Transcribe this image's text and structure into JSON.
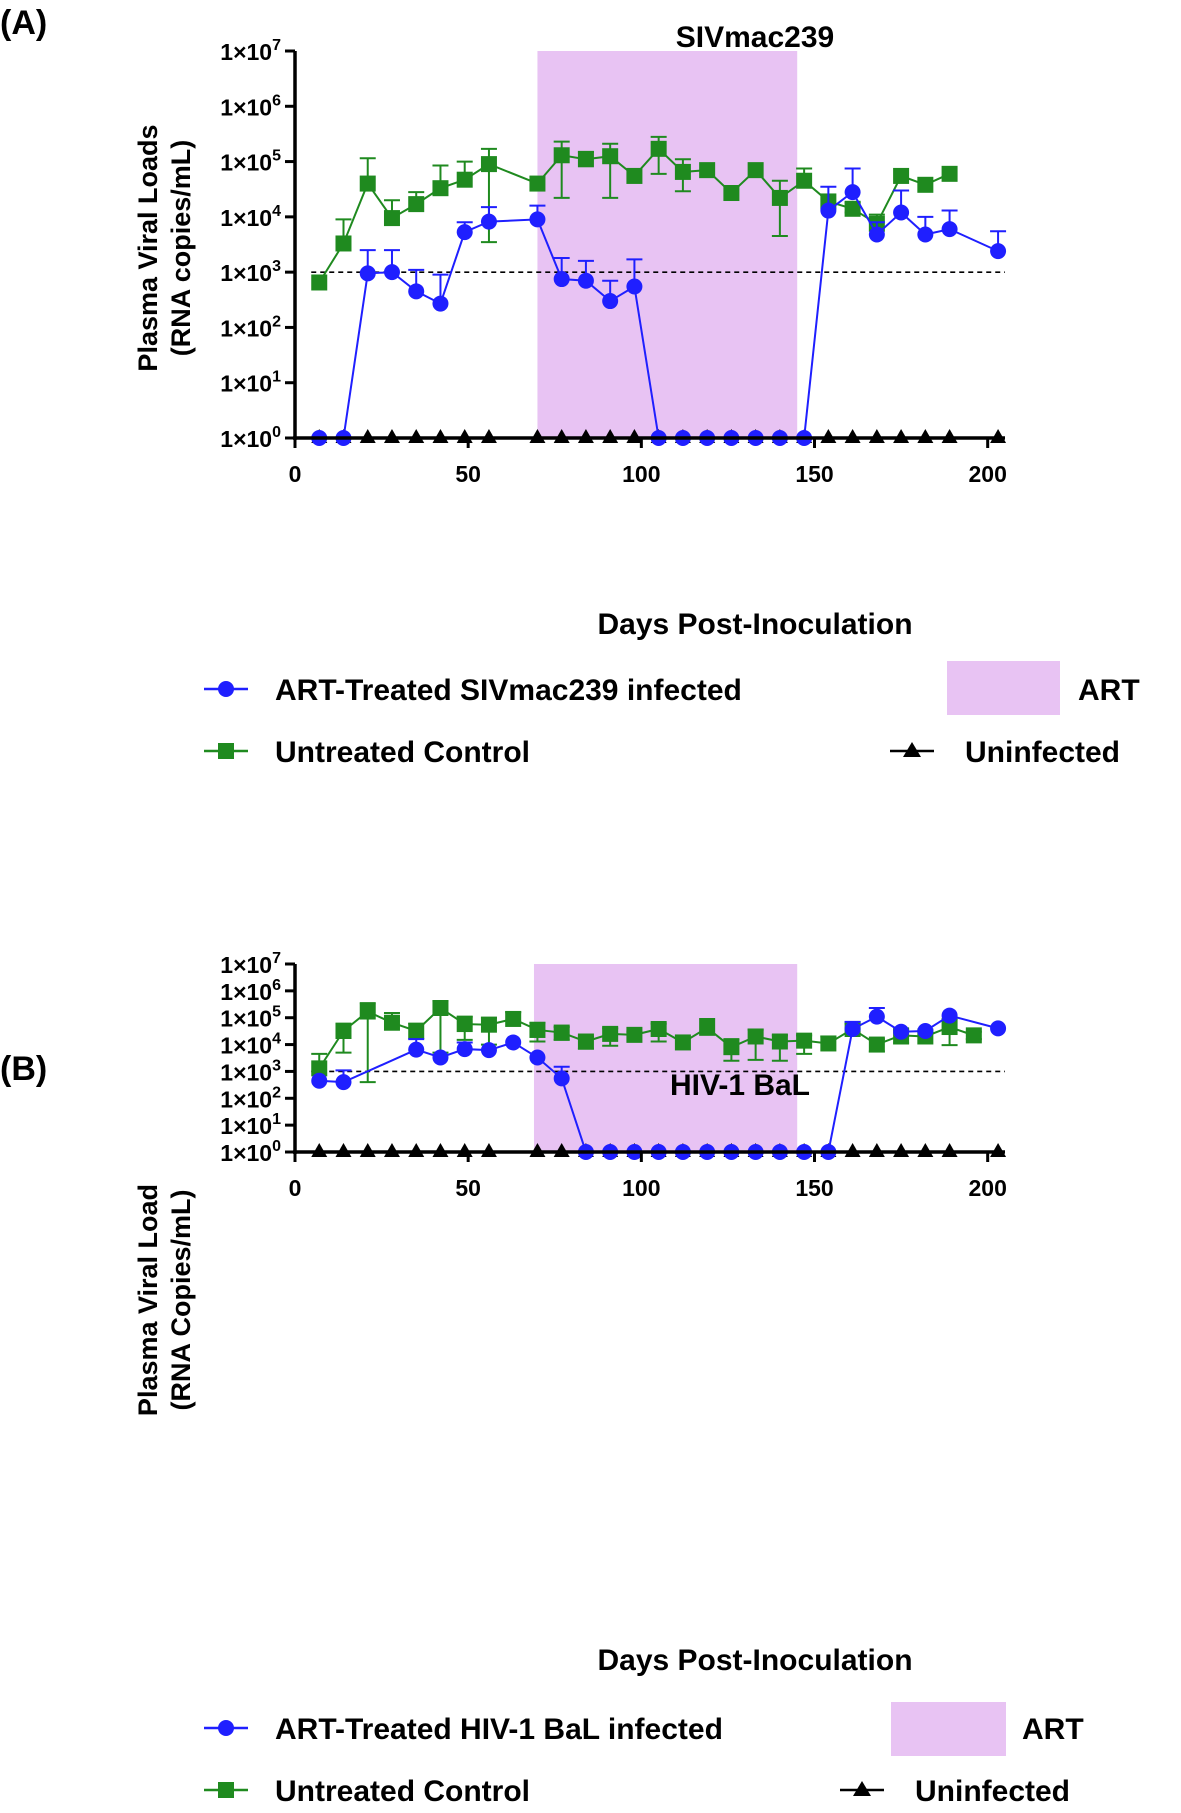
{
  "chart_data": [
    {
      "type": "line",
      "panel_label": "(A)",
      "title": "SIVmac239",
      "ylabel_line1": "Plasma Viral Loads",
      "ylabel_line2": "(RNA copies/mL)",
      "xlabel": "Days Post-Inoculation",
      "y_scale": "log10",
      "ylim": [
        1,
        10000000
      ],
      "xlim": [
        0,
        205
      ],
      "x_ticks": [
        0,
        50,
        100,
        150,
        200
      ],
      "x_tick_labels": [
        "0",
        "50",
        "100",
        "150",
        "200"
      ],
      "y_tick_exponents": [
        0,
        1,
        2,
        3,
        4,
        5,
        6,
        7
      ],
      "y_tick_labels": [
        {
          "base": "1×10",
          "exp": "0"
        },
        {
          "base": "1×10",
          "exp": "1"
        },
        {
          "base": "1×10",
          "exp": "2"
        },
        {
          "base": "1×10",
          "exp": "3"
        },
        {
          "base": "1×10",
          "exp": "4"
        },
        {
          "base": "1×10",
          "exp": "5"
        },
        {
          "base": "1×10",
          "exp": "6"
        },
        {
          "base": "1×10",
          "exp": "7"
        }
      ],
      "threshold": 1000,
      "shaded_region": {
        "label": "ART",
        "x_start": 70,
        "x_end": 145,
        "color": "#e8c3f3"
      },
      "series": [
        {
          "name": "ART-Treated SIVmac239 infected",
          "color": "#1f1fff",
          "marker": "circle",
          "x": [
            7,
            14,
            21,
            28,
            35,
            42,
            49,
            56,
            70,
            77,
            84,
            91,
            98,
            105,
            112,
            119,
            126,
            133,
            140,
            147,
            154,
            161,
            168,
            175,
            182,
            189,
            203
          ],
          "y": [
            1,
            1,
            950,
            1000,
            450,
            270,
            5300,
            8200,
            9000,
            750,
            700,
            300,
            550,
            1,
            1,
            1,
            1,
            1,
            1,
            1,
            13000,
            28000,
            4800,
            12000,
            4800,
            6000,
            2400
          ],
          "err_up": [
            1,
            1,
            2500,
            2500,
            1100,
            900,
            8000,
            15000,
            16000,
            1800,
            1600,
            700,
            1700,
            1,
            1,
            1,
            1,
            1,
            1,
            1,
            35000,
            75000,
            8000,
            30000,
            10000,
            13000,
            5500
          ]
        },
        {
          "name": "Untreated Control",
          "color": "#1f8a1f",
          "marker": "square",
          "x": [
            7,
            14,
            21,
            28,
            35,
            42,
            49,
            56,
            70,
            77,
            84,
            91,
            98,
            105,
            112,
            119,
            126,
            133,
            140,
            147,
            154,
            161,
            168,
            175,
            182,
            189
          ],
          "y": [
            650,
            3300,
            40000,
            9500,
            17000,
            33000,
            47000,
            90000,
            40000,
            130000,
            110000,
            125000,
            55000,
            170000,
            65000,
            70000,
            27000,
            70000,
            22000,
            45000,
            19000,
            14000,
            7500,
            55000,
            38000,
            60000
          ],
          "err_up": [
            650,
            9000,
            115000,
            20000,
            28000,
            85000,
            100000,
            170000,
            40000,
            230000,
            150000,
            210000,
            55000,
            280000,
            110000,
            70000,
            27000,
            70000,
            45000,
            75000,
            19000,
            18000,
            11000,
            55000,
            38000,
            60000
          ],
          "err_down": [
            650,
            3300,
            40000,
            9500,
            17000,
            33000,
            47000,
            3500,
            40000,
            22000,
            110000,
            22000,
            55000,
            60000,
            29000,
            70000,
            27000,
            70000,
            4500,
            45000,
            19000,
            12000,
            7500,
            55000,
            38000,
            60000
          ]
        },
        {
          "name": "Uninfected",
          "color": "#000000",
          "marker": "triangle",
          "x": [
            7,
            14,
            21,
            28,
            35,
            42,
            49,
            56,
            70,
            77,
            84,
            91,
            98,
            105,
            112,
            119,
            126,
            133,
            140,
            147,
            154,
            161,
            168,
            175,
            182,
            189,
            203
          ],
          "y": [
            1,
            1,
            1,
            1,
            1,
            1,
            1,
            1,
            1,
            1,
            1,
            1,
            1,
            1,
            1,
            1,
            1,
            1,
            1,
            1,
            1,
            1,
            1,
            1,
            1,
            1,
            1
          ]
        }
      ]
    },
    {
      "type": "line",
      "panel_label": "(B)",
      "title": "HIV-1 BaL",
      "ylabel_line1": "Plasma Viral Load",
      "ylabel_line2": "(RNA Copies/mL)",
      "xlabel": "Days Post-Inoculation",
      "y_scale": "log10",
      "ylim": [
        1,
        10000000
      ],
      "xlim": [
        0,
        205
      ],
      "x_ticks": [
        0,
        50,
        100,
        150,
        200
      ],
      "x_tick_labels": [
        "0",
        "50",
        "100",
        "150",
        "200"
      ],
      "y_tick_exponents": [
        0,
        1,
        2,
        3,
        4,
        5,
        6,
        7
      ],
      "y_tick_labels": [
        {
          "base": "1×10",
          "exp": "0"
        },
        {
          "base": "1×10",
          "exp": "1"
        },
        {
          "base": "1×10",
          "exp": "2"
        },
        {
          "base": "1×10",
          "exp": "3"
        },
        {
          "base": "1×10",
          "exp": "4"
        },
        {
          "base": "1×10",
          "exp": "5"
        },
        {
          "base": "1×10",
          "exp": "6"
        },
        {
          "base": "1×10",
          "exp": "7"
        }
      ],
      "threshold": 1000,
      "shaded_region": {
        "label": "ART",
        "x_start": 69,
        "x_end": 145,
        "color": "#e8c3f3"
      },
      "series": [
        {
          "name": "ART-Treated HIV-1 BaL infected",
          "color": "#1f1fff",
          "marker": "circle",
          "x": [
            7,
            14,
            35,
            42,
            49,
            56,
            63,
            70,
            77,
            84,
            91,
            98,
            105,
            112,
            119,
            126,
            133,
            140,
            147,
            154,
            161,
            168,
            175,
            182,
            189,
            203
          ],
          "y": [
            450,
            400,
            6500,
            3300,
            6800,
            6200,
            12000,
            3300,
            550,
            1,
            1,
            1,
            1,
            1,
            1,
            1,
            1,
            1,
            1,
            1,
            38000,
            110000,
            30000,
            32000,
            120000,
            40000
          ],
          "err_up": [
            450,
            1100,
            16000,
            3300,
            12000,
            6200,
            12000,
            3300,
            1500,
            1,
            1,
            1,
            1,
            1,
            1,
            1,
            1,
            1,
            1,
            1,
            70000,
            230000,
            30000,
            32000,
            120000,
            40000
          ]
        },
        {
          "name": "Untreated Control",
          "color": "#1f8a1f",
          "marker": "square",
          "x": [
            7,
            14,
            21,
            28,
            35,
            42,
            49,
            56,
            63,
            70,
            77,
            84,
            91,
            98,
            105,
            112,
            119,
            126,
            133,
            140,
            147,
            154,
            161,
            168,
            175,
            182,
            189,
            196
          ],
          "y": [
            1300,
            32000,
            170000,
            65000,
            32000,
            230000,
            58000,
            55000,
            90000,
            35000,
            28000,
            13000,
            25000,
            23000,
            38000,
            12000,
            42000,
            8000,
            20000,
            13000,
            14000,
            11000,
            38000,
            10000,
            22000,
            20000,
            45000,
            22000
          ],
          "err_up": [
            4500,
            60000,
            350000,
            150000,
            60000,
            420000,
            110000,
            100000,
            160000,
            65000,
            45000,
            20000,
            40000,
            30000,
            60000,
            12000,
            90000,
            16000,
            36000,
            22000,
            22000,
            20000,
            60000,
            16000,
            36000,
            30000,
            90000,
            30000
          ],
          "err_down": [
            1300,
            5000,
            400,
            65000,
            32000,
            5000,
            15000,
            10000,
            90000,
            13000,
            15000,
            7000,
            9000,
            18000,
            13000,
            12000,
            42000,
            2500,
            2700,
            2500,
            4500,
            11000,
            38000,
            5500,
            11000,
            20000,
            9500,
            16000
          ]
        },
        {
          "name": "Uninfected",
          "color": "#000000",
          "marker": "triangle",
          "x": [
            7,
            14,
            21,
            28,
            35,
            42,
            49,
            56,
            70,
            77,
            84,
            91,
            98,
            105,
            112,
            119,
            126,
            133,
            140,
            147,
            154,
            161,
            168,
            175,
            182,
            189,
            203
          ],
          "y": [
            1,
            1,
            1,
            1,
            1,
            1,
            1,
            1,
            1,
            1,
            1,
            1,
            1,
            1,
            1,
            1,
            1,
            1,
            1,
            1,
            1,
            1,
            1,
            1,
            1,
            1,
            1
          ]
        }
      ]
    }
  ]
}
